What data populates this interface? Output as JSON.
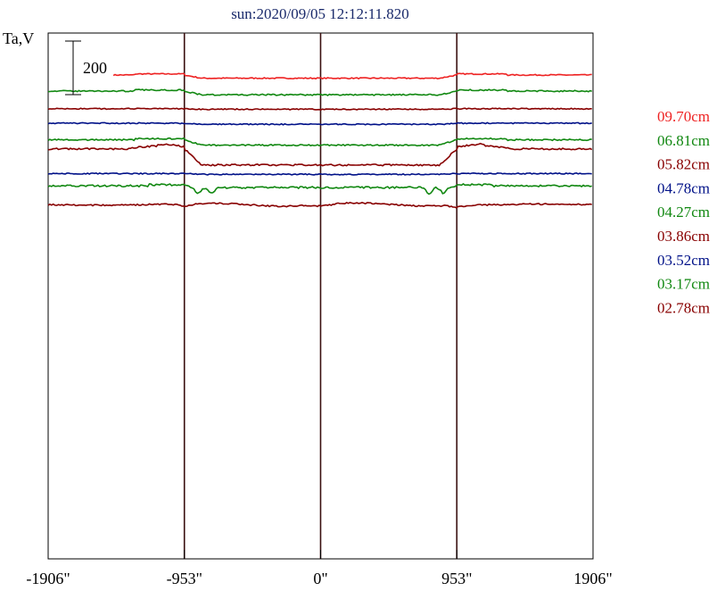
{
  "chart_data": {
    "type": "line",
    "title": "sun:2020/09/05 12:12:11.820",
    "ylabel": "Ta,V",
    "scale_bar_label": "200",
    "scale_bar_value": 200,
    "x_ticks": [
      {
        "value": -1906,
        "label": "-1906\""
      },
      {
        "value": -953,
        "label": "-953\""
      },
      {
        "value": 0,
        "label": "0\""
      },
      {
        "value": 953,
        "label": "953\""
      },
      {
        "value": 1906,
        "label": "1906\""
      }
    ],
    "vertical_lines": [
      -953,
      0,
      953
    ],
    "xlim": [
      -1906,
      1906
    ],
    "series": [
      {
        "name": "09.70cm",
        "color": "#ee2222",
        "base": 0,
        "start": -1450,
        "bump_shape": "limb",
        "dip": 12,
        "roughness": 4
      },
      {
        "name": "06.81cm",
        "color": "#118811",
        "base": -60,
        "start": -1906,
        "bump_shape": "limb",
        "dip": 14,
        "roughness": 5
      },
      {
        "name": "05.82cm",
        "color": "#880000",
        "base": -126,
        "start": -1906,
        "bump_shape": "flat",
        "dip": 4,
        "roughness": 4
      },
      {
        "name": "04.78cm",
        "color": "#001188",
        "base": -180,
        "start": -1906,
        "bump_shape": "flat",
        "dip": 8,
        "roughness": 4
      },
      {
        "name": "04.27cm",
        "color": "#118811",
        "base": -242,
        "start": -1906,
        "bump_shape": "limb",
        "dip": 20,
        "roughness": 5
      },
      {
        "name": "03.86cm",
        "color": "#880000",
        "base": -276,
        "start": -1906,
        "bump_shape": "deep",
        "dip": 60,
        "roughness": 6
      },
      {
        "name": "03.52cm",
        "color": "#001188",
        "base": -368,
        "start": -1906,
        "bump_shape": "flat",
        "dip": 6,
        "roughness": 4
      },
      {
        "name": "03.17cm",
        "color": "#118811",
        "base": -414,
        "start": -1906,
        "bump_shape": "spiky",
        "dip": 22,
        "roughness": 7
      },
      {
        "name": "02.78cm",
        "color": "#880000",
        "base": -484,
        "start": -1906,
        "bump_shape": "wavy",
        "dip": 8,
        "roughness": 5
      }
    ]
  }
}
